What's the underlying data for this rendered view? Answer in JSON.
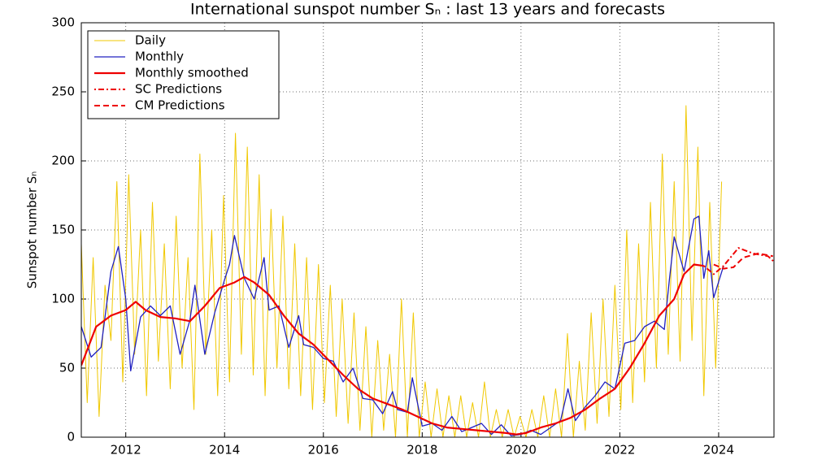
{
  "chart_data": {
    "type": "line",
    "title": "International sunspot number Sₙ : last 13 years and forecasts",
    "y_label": "Sunspot number Sₙ",
    "xlim": [
      2011.1,
      2025.12
    ],
    "xticks": [
      2012,
      2014,
      2016,
      2018,
      2020,
      2022,
      2024
    ],
    "ylim": [
      0,
      300
    ],
    "yticks": [
      0,
      50,
      100,
      150,
      200,
      250,
      300
    ],
    "grid": true,
    "legend": "upper-left",
    "series": [
      {
        "name": "Daily",
        "color": "#f0c800",
        "style": "solid",
        "width": 1,
        "x": [
          2011.1,
          2011.22,
          2011.34,
          2011.46,
          2011.58,
          2011.7,
          2011.82,
          2011.94,
          2012.06,
          2012.18,
          2012.3,
          2012.42,
          2012.54,
          2012.66,
          2012.78,
          2012.9,
          2013.02,
          2013.14,
          2013.26,
          2013.38,
          2013.5,
          2013.62,
          2013.74,
          2013.86,
          2013.98,
          2014.1,
          2014.22,
          2014.34,
          2014.46,
          2014.58,
          2014.7,
          2014.82,
          2014.94,
          2015.06,
          2015.18,
          2015.3,
          2015.42,
          2015.54,
          2015.66,
          2015.78,
          2015.9,
          2016.02,
          2016.14,
          2016.26,
          2016.38,
          2016.5,
          2016.62,
          2016.74,
          2016.86,
          2016.98,
          2017.1,
          2017.22,
          2017.34,
          2017.46,
          2017.58,
          2017.7,
          2017.82,
          2017.94,
          2018.06,
          2018.18,
          2018.3,
          2018.42,
          2018.54,
          2018.66,
          2018.78,
          2018.9,
          2019.02,
          2019.14,
          2019.26,
          2019.38,
          2019.5,
          2019.62,
          2019.74,
          2019.86,
          2019.98,
          2020.1,
          2020.22,
          2020.34,
          2020.46,
          2020.58,
          2020.7,
          2020.82,
          2020.94,
          2021.06,
          2021.18,
          2021.3,
          2021.42,
          2021.54,
          2021.66,
          2021.78,
          2021.9,
          2022.02,
          2022.14,
          2022.26,
          2022.38,
          2022.5,
          2022.62,
          2022.74,
          2022.86,
          2022.98,
          2023.1,
          2023.22,
          2023.34,
          2023.46,
          2023.58,
          2023.7,
          2023.82,
          2023.94,
          2024.06
        ],
        "values": [
          140,
          25,
          130,
          15,
          110,
          70,
          185,
          40,
          190,
          60,
          150,
          30,
          170,
          55,
          140,
          35,
          160,
          50,
          130,
          20,
          205,
          60,
          150,
          30,
          175,
          40,
          220,
          60,
          210,
          45,
          190,
          30,
          165,
          50,
          160,
          35,
          140,
          30,
          130,
          20,
          125,
          25,
          110,
          15,
          100,
          10,
          90,
          5,
          80,
          0,
          70,
          5,
          60,
          0,
          100,
          0,
          90,
          0,
          40,
          0,
          35,
          0,
          30,
          0,
          30,
          0,
          25,
          0,
          40,
          0,
          20,
          0,
          20,
          0,
          15,
          0,
          20,
          0,
          30,
          0,
          35,
          0,
          75,
          0,
          55,
          5,
          90,
          10,
          100,
          15,
          110,
          20,
          150,
          25,
          140,
          40,
          170,
          50,
          205,
          60,
          185,
          55,
          240,
          70,
          210,
          30,
          170,
          50,
          185
        ]
      },
      {
        "name": "Monthly",
        "color": "#2020c0",
        "style": "solid",
        "width": 1.3,
        "x": [
          2011.1,
          2011.3,
          2011.5,
          2011.7,
          2011.85,
          2012.0,
          2012.1,
          2012.3,
          2012.5,
          2012.7,
          2012.9,
          2013.1,
          2013.3,
          2013.4,
          2013.6,
          2013.8,
          2014.0,
          2014.1,
          2014.2,
          2014.4,
          2014.6,
          2014.8,
          2014.9,
          2015.1,
          2015.3,
          2015.5,
          2015.6,
          2015.8,
          2016.0,
          2016.2,
          2016.4,
          2016.6,
          2016.8,
          2017.0,
          2017.2,
          2017.4,
          2017.5,
          2017.7,
          2017.8,
          2018.0,
          2018.2,
          2018.4,
          2018.6,
          2018.8,
          2019.0,
          2019.2,
          2019.4,
          2019.6,
          2019.8,
          2020.0,
          2020.2,
          2020.4,
          2020.6,
          2020.8,
          2020.95,
          2021.1,
          2021.3,
          2021.5,
          2021.7,
          2021.9,
          2022.1,
          2022.3,
          2022.5,
          2022.7,
          2022.9,
          2023.0,
          2023.1,
          2023.3,
          2023.5,
          2023.6,
          2023.7,
          2023.8,
          2023.9,
          2024.1
        ],
        "values": [
          80,
          58,
          65,
          120,
          138,
          100,
          48,
          87,
          95,
          88,
          95,
          60,
          85,
          110,
          60,
          90,
          114,
          125,
          146,
          115,
          100,
          130,
          92,
          95,
          65,
          88,
          67,
          65,
          57,
          55,
          40,
          50,
          28,
          27,
          17,
          33,
          20,
          18,
          43,
          8,
          10,
          5,
          15,
          4,
          7,
          10,
          2,
          9,
          1,
          2,
          5,
          2,
          7,
          12,
          35,
          12,
          22,
          30,
          40,
          35,
          68,
          70,
          80,
          84,
          78,
          113,
          145,
          120,
          158,
          160,
          115,
          135,
          101,
          124
        ]
      },
      {
        "name": "Monthly smoothed",
        "color": "#ee0000",
        "style": "solid",
        "width": 2.2,
        "x": [
          2011.1,
          2011.4,
          2011.7,
          2012.0,
          2012.2,
          2012.4,
          2012.7,
          2013.0,
          2013.3,
          2013.6,
          2013.9,
          2014.2,
          2014.4,
          2014.6,
          2014.9,
          2015.2,
          2015.5,
          2015.8,
          2016.1,
          2016.4,
          2016.7,
          2017.0,
          2017.3,
          2017.6,
          2017.9,
          2018.2,
          2018.5,
          2018.8,
          2019.1,
          2019.4,
          2019.7,
          2019.9,
          2020.1,
          2020.4,
          2020.7,
          2021.0,
          2021.3,
          2021.6,
          2021.9,
          2022.2,
          2022.5,
          2022.8,
          2023.1,
          2023.3,
          2023.5,
          2023.7
        ],
        "values": [
          52,
          80,
          88,
          92,
          98,
          92,
          87,
          86,
          84,
          95,
          108,
          112,
          116,
          112,
          103,
          88,
          75,
          67,
          56,
          45,
          35,
          28,
          24,
          20,
          15,
          10,
          7,
          6,
          5,
          4,
          3,
          2,
          3,
          7,
          10,
          14,
          20,
          28,
          35,
          50,
          68,
          88,
          100,
          118,
          125,
          124
        ]
      },
      {
        "name": "SC Predictions",
        "color": "#ee0000",
        "style": "dashdot",
        "width": 2,
        "x": [
          2023.7,
          2023.9,
          2024.1,
          2024.4,
          2024.7,
          2025.0,
          2025.12
        ],
        "values": [
          124,
          118,
          124,
          137,
          133,
          131,
          127
        ]
      },
      {
        "name": "CM Predictions",
        "color": "#ee0000",
        "style": "dashed",
        "width": 2,
        "x": [
          2023.9,
          2024.1,
          2024.3,
          2024.5,
          2024.8,
          2025.1
        ],
        "values": [
          125,
          122,
          123,
          130,
          133,
          131
        ]
      }
    ]
  }
}
